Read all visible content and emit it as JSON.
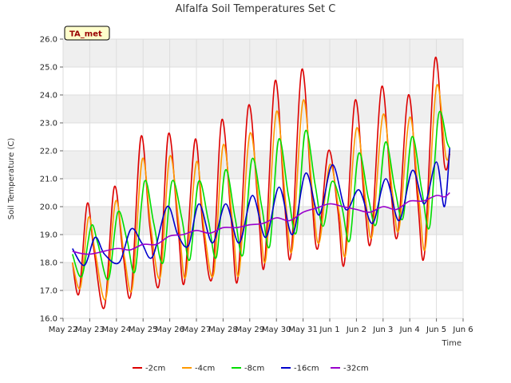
{
  "chart_data": {
    "type": "line",
    "title": "Alfalfa Soil Temperatures Set C",
    "xlabel": "Time",
    "ylabel": "Soil Temperature (C)",
    "badge": "TA_met",
    "ylim": [
      16.0,
      26.0
    ],
    "yticks": [
      "16.0",
      "17.0",
      "18.0",
      "19.0",
      "20.0",
      "21.0",
      "22.0",
      "23.0",
      "24.0",
      "25.0",
      "26.0"
    ],
    "xlim": [
      0,
      15
    ],
    "xticks": [
      "May 22",
      "May 23",
      "May 24",
      "May 25",
      "May 26",
      "May 27",
      "May 28",
      "May 29",
      "May 30",
      "May 31",
      "Jun 1",
      "Jun 2",
      "Jun 3",
      "Jun 4",
      "Jun 5",
      "Jun 6"
    ],
    "grid": true,
    "legend_position": "bottom-center",
    "series": [
      {
        "name": "-2cm",
        "color": "#dd0000",
        "x": [
          0.35,
          0.6,
          0.9,
          1.15,
          1.55,
          1.92,
          2.25,
          2.55,
          2.92,
          3.25,
          3.6,
          3.95,
          4.3,
          4.55,
          4.95,
          5.25,
          5.6,
          5.95,
          6.3,
          6.55,
          6.95,
          7.3,
          7.55,
          7.95,
          8.3,
          8.55,
          8.95,
          9.3,
          9.55,
          9.95,
          10.3,
          10.55,
          10.95,
          11.3,
          11.55,
          11.95,
          12.3,
          12.55,
          12.95,
          13.3,
          13.55,
          13.95,
          14.3,
          14.5
        ],
        "y": [
          18.0,
          16.9,
          20.1,
          18.5,
          16.4,
          20.7,
          18.3,
          16.9,
          22.5,
          19.3,
          17.2,
          22.6,
          19.4,
          17.3,
          22.4,
          19.2,
          17.5,
          23.1,
          19.6,
          17.4,
          23.6,
          20.2,
          17.9,
          24.5,
          20.2,
          18.3,
          24.9,
          20.7,
          18.5,
          22.0,
          19.9,
          18.0,
          23.8,
          20.2,
          18.8,
          24.3,
          20.5,
          19.0,
          24.0,
          20.2,
          18.3,
          25.3,
          21.5,
          21.9
        ]
      },
      {
        "name": "-4cm",
        "color": "#ff9900",
        "x": [
          0.35,
          0.65,
          0.95,
          1.2,
          1.6,
          1.97,
          2.3,
          2.6,
          2.97,
          3.3,
          3.65,
          4.0,
          4.35,
          4.6,
          5.0,
          5.3,
          5.65,
          6.0,
          6.35,
          6.6,
          7.0,
          7.35,
          7.6,
          8.0,
          8.35,
          8.6,
          9.0,
          9.35,
          9.6,
          10.0,
          10.35,
          10.6,
          11.0,
          11.35,
          11.6,
          12.0,
          12.35,
          12.6,
          13.0,
          13.35,
          13.6,
          14.0,
          14.35,
          14.5
        ],
        "y": [
          18.0,
          17.1,
          19.6,
          18.4,
          16.7,
          20.2,
          18.2,
          17.1,
          21.7,
          19.2,
          17.5,
          21.8,
          19.3,
          17.5,
          21.6,
          19.1,
          17.6,
          22.2,
          19.5,
          17.6,
          22.6,
          20.0,
          18.1,
          23.4,
          20.1,
          18.5,
          23.8,
          20.5,
          18.7,
          21.5,
          19.8,
          18.3,
          22.8,
          20.2,
          19.0,
          23.3,
          20.5,
          19.2,
          23.2,
          20.2,
          18.6,
          24.3,
          21.8,
          22.0
        ]
      },
      {
        "name": "-8cm",
        "color": "#00dd00",
        "x": [
          0.35,
          0.7,
          1.05,
          1.3,
          1.7,
          2.05,
          2.4,
          2.7,
          3.05,
          3.4,
          3.75,
          4.08,
          4.45,
          4.75,
          5.08,
          5.45,
          5.75,
          6.08,
          6.45,
          6.75,
          7.08,
          7.45,
          7.75,
          8.08,
          8.45,
          8.75,
          9.08,
          9.45,
          9.75,
          10.08,
          10.45,
          10.75,
          11.08,
          11.45,
          11.75,
          12.08,
          12.45,
          12.75,
          13.08,
          13.45,
          13.75,
          14.08,
          14.4,
          14.5
        ],
        "y": [
          18.3,
          17.5,
          19.3,
          18.7,
          17.4,
          19.8,
          18.8,
          17.7,
          20.9,
          19.4,
          18.0,
          20.9,
          19.6,
          18.1,
          20.9,
          19.5,
          18.2,
          21.3,
          19.6,
          18.3,
          21.7,
          20.0,
          18.6,
          22.4,
          20.4,
          19.1,
          22.7,
          20.8,
          19.3,
          20.9,
          20.0,
          18.8,
          21.9,
          20.3,
          19.4,
          22.3,
          20.6,
          19.6,
          22.5,
          20.6,
          19.3,
          23.3,
          22.3,
          22.1
        ]
      },
      {
        "name": "-16cm",
        "color": "#0000cc",
        "x": [
          0.35,
          0.8,
          1.2,
          1.55,
          2.1,
          2.55,
          2.95,
          3.35,
          3.9,
          4.3,
          4.7,
          5.1,
          5.6,
          6.1,
          6.6,
          7.1,
          7.6,
          8.1,
          8.6,
          9.1,
          9.6,
          10.1,
          10.6,
          11.1,
          11.6,
          12.1,
          12.6,
          13.1,
          13.55,
          14.0,
          14.3,
          14.5
        ],
        "y": [
          18.5,
          17.9,
          18.9,
          18.3,
          18.0,
          19.2,
          18.7,
          18.2,
          20.0,
          19.0,
          18.6,
          20.1,
          18.7,
          20.1,
          18.7,
          20.4,
          18.9,
          20.7,
          19.0,
          21.2,
          19.7,
          21.5,
          19.9,
          20.6,
          19.4,
          21.0,
          19.5,
          21.3,
          20.1,
          21.6,
          20.0,
          22.1
        ]
      },
      {
        "name": "-32cm",
        "color": "#9900cc",
        "x": [
          0.35,
          1.0,
          2.0,
          2.5,
          3.0,
          3.5,
          4.0,
          4.5,
          5.0,
          5.5,
          6.0,
          6.5,
          7.0,
          7.5,
          8.0,
          8.5,
          9.0,
          9.5,
          10.0,
          10.5,
          11.0,
          11.5,
          12.0,
          12.5,
          13.0,
          13.5,
          14.0,
          14.3,
          14.5
        ],
        "y": [
          18.4,
          18.3,
          18.5,
          18.45,
          18.65,
          18.65,
          18.95,
          19.0,
          19.15,
          19.05,
          19.25,
          19.25,
          19.35,
          19.4,
          19.6,
          19.5,
          19.8,
          19.95,
          20.1,
          20.0,
          19.9,
          19.8,
          20.0,
          19.9,
          20.2,
          20.2,
          20.4,
          20.35,
          20.5
        ]
      }
    ]
  }
}
